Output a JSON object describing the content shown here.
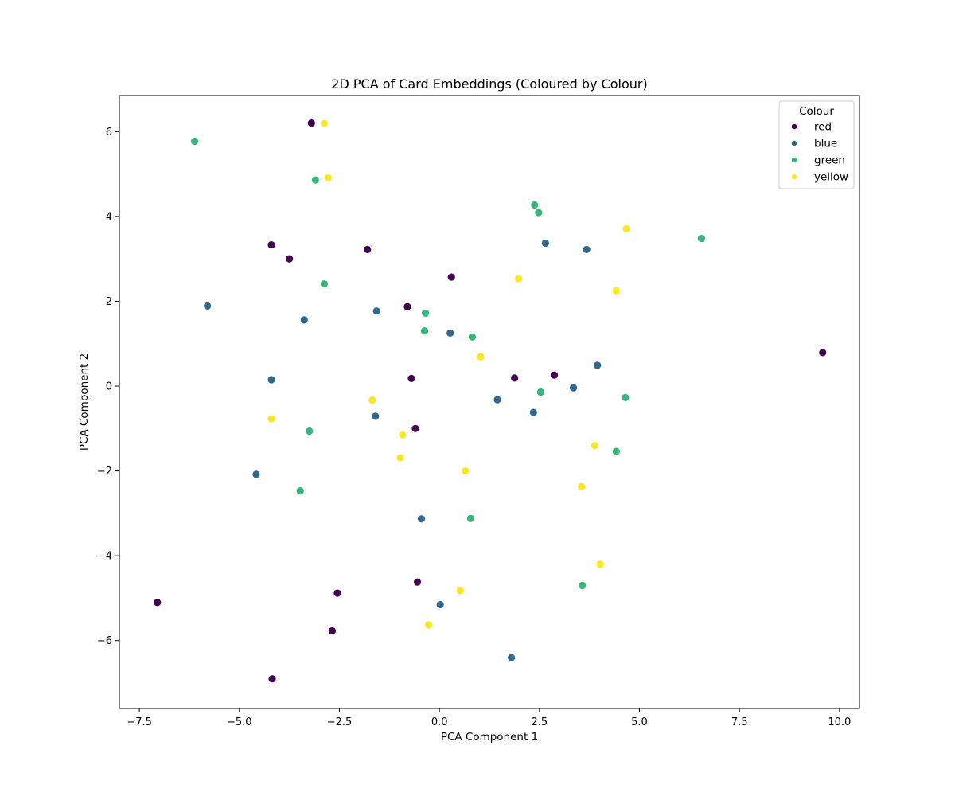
{
  "chart_data": {
    "type": "scatter",
    "title": "2D PCA of Card Embeddings (Coloured by Colour)",
    "xlabel": "PCA Component 1",
    "ylabel": "PCA Component 2",
    "xlim": [
      -8.0,
      10.5
    ],
    "ylim": [
      -7.6,
      6.85
    ],
    "xticks": [
      -7.5,
      -5.0,
      -2.5,
      0.0,
      2.5,
      5.0,
      7.5,
      10.0
    ],
    "xtick_labels": [
      "−7.5",
      "−5.0",
      "−2.5",
      "0.0",
      "2.5",
      "5.0",
      "7.5",
      "10.0"
    ],
    "yticks": [
      -6,
      -4,
      -2,
      0,
      2,
      4,
      6
    ],
    "ytick_labels": [
      "−6",
      "−4",
      "−2",
      "0",
      "2",
      "4",
      "6"
    ],
    "grid": false,
    "legend": {
      "title": "Colour",
      "placement": "top-right"
    },
    "series": [
      {
        "name": "red",
        "color": "#440154",
        "points": [
          {
            "x": -3.2,
            "y": 6.2
          },
          {
            "x": -4.2,
            "y": 3.33
          },
          {
            "x": -3.75,
            "y": 3.0
          },
          {
            "x": -1.8,
            "y": 3.22
          },
          {
            "x": 0.3,
            "y": 2.57
          },
          {
            "x": -0.8,
            "y": 1.87
          },
          {
            "x": -0.7,
            "y": 0.18
          },
          {
            "x": 1.88,
            "y": 0.19
          },
          {
            "x": 2.87,
            "y": 0.26
          },
          {
            "x": 9.58,
            "y": 0.79
          },
          {
            "x": -0.6,
            "y": -1.0
          },
          {
            "x": -7.05,
            "y": -5.1
          },
          {
            "x": -2.55,
            "y": -4.88
          },
          {
            "x": -0.55,
            "y": -4.62
          },
          {
            "x": -2.68,
            "y": -5.77
          },
          {
            "x": -4.18,
            "y": -6.9
          }
        ]
      },
      {
        "name": "blue",
        "color": "#31688e",
        "points": [
          {
            "x": -5.8,
            "y": 1.89
          },
          {
            "x": -3.38,
            "y": 1.56
          },
          {
            "x": -1.57,
            "y": 1.77
          },
          {
            "x": 0.27,
            "y": 1.25
          },
          {
            "x": 2.65,
            "y": 3.37
          },
          {
            "x": 3.68,
            "y": 3.22
          },
          {
            "x": 3.95,
            "y": 0.49
          },
          {
            "x": 3.35,
            "y": -0.04
          },
          {
            "x": 1.45,
            "y": -0.32
          },
          {
            "x": 2.35,
            "y": -0.62
          },
          {
            "x": -4.2,
            "y": 0.15
          },
          {
            "x": -1.6,
            "y": -0.71
          },
          {
            "x": -4.58,
            "y": -2.08
          },
          {
            "x": -0.45,
            "y": -3.13
          },
          {
            "x": 0.02,
            "y": -5.15
          },
          {
            "x": 1.8,
            "y": -6.4
          }
        ]
      },
      {
        "name": "green",
        "color": "#35b779",
        "points": [
          {
            "x": -6.12,
            "y": 5.77
          },
          {
            "x": -3.1,
            "y": 4.86
          },
          {
            "x": -2.88,
            "y": 2.41
          },
          {
            "x": 2.38,
            "y": 4.27
          },
          {
            "x": 2.48,
            "y": 4.09
          },
          {
            "x": 6.55,
            "y": 3.48
          },
          {
            "x": -0.35,
            "y": 1.72
          },
          {
            "x": -0.37,
            "y": 1.3
          },
          {
            "x": 0.82,
            "y": 1.16
          },
          {
            "x": 2.53,
            "y": -0.14
          },
          {
            "x": 4.65,
            "y": -0.27
          },
          {
            "x": -3.25,
            "y": -1.06
          },
          {
            "x": 4.42,
            "y": -1.54
          },
          {
            "x": -3.48,
            "y": -2.47
          },
          {
            "x": 0.78,
            "y": -3.12
          },
          {
            "x": 3.57,
            "y": -4.7
          }
        ]
      },
      {
        "name": "yellow",
        "color": "#fde725",
        "points": [
          {
            "x": -2.88,
            "y": 6.19
          },
          {
            "x": -2.78,
            "y": 4.91
          },
          {
            "x": 4.67,
            "y": 3.71
          },
          {
            "x": 1.98,
            "y": 2.53
          },
          {
            "x": 4.42,
            "y": 2.25
          },
          {
            "x": 1.03,
            "y": 0.69
          },
          {
            "x": -1.68,
            "y": -0.33
          },
          {
            "x": -4.2,
            "y": -0.77
          },
          {
            "x": -0.92,
            "y": -1.15
          },
          {
            "x": -0.98,
            "y": -1.69
          },
          {
            "x": 0.65,
            "y": -2.0
          },
          {
            "x": 3.88,
            "y": -1.4
          },
          {
            "x": 3.55,
            "y": -2.37
          },
          {
            "x": 4.02,
            "y": -4.2
          },
          {
            "x": 0.52,
            "y": -4.82
          },
          {
            "x": -0.27,
            "y": -5.63
          }
        ]
      }
    ]
  }
}
